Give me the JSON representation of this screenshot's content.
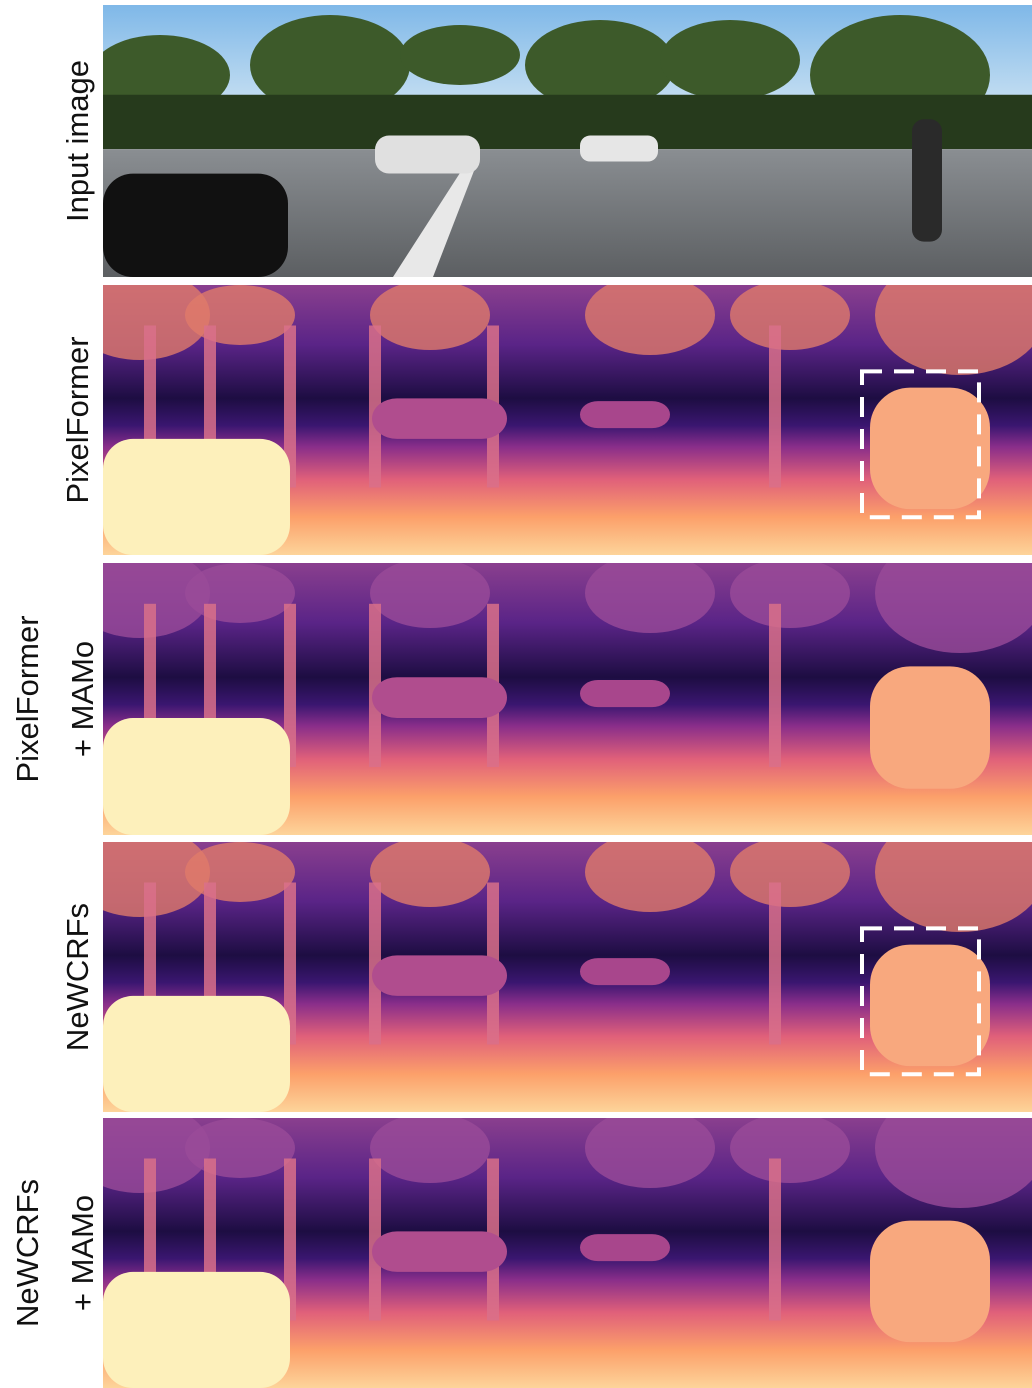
{
  "figure": {
    "rows": [
      {
        "label_lines": [
          "Input image"
        ]
      },
      {
        "label_lines": [
          "PixelFormer"
        ]
      },
      {
        "label_lines": [
          "PixelFormer",
          "+ MAMo"
        ]
      },
      {
        "label_lines": [
          "NeWCRFs"
        ]
      },
      {
        "label_lines": [
          "NeWCRFs",
          "+ MAMo"
        ]
      }
    ]
  }
}
